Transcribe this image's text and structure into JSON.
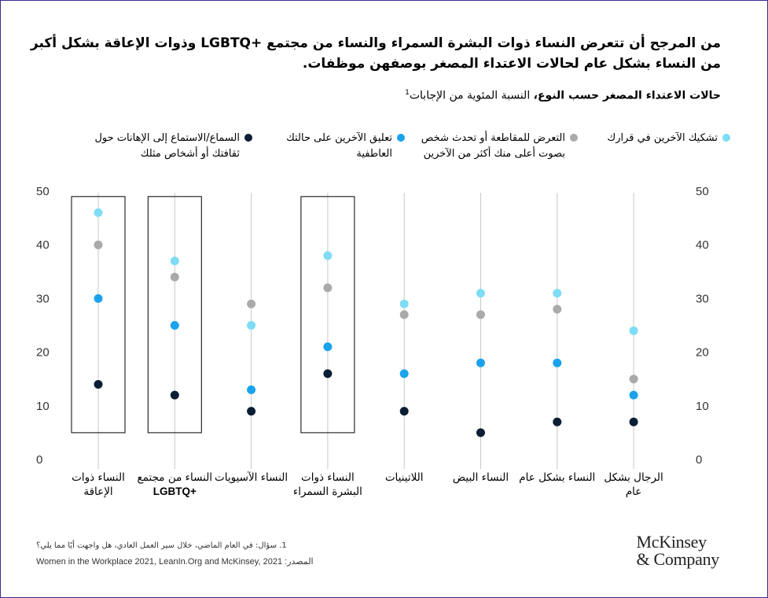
{
  "title": "من المرجح أن تتعرض النساء ذوات البشرة السمراء والنساء من مجتمع +LGBTQ وذوات الإعاقة بشكل أكبر من النساء بشكل عام لحالات الاعتداء المصغر بوصفهن موظفات.",
  "subtitle_bold": "حالات الاعتداء المصغر حسب النوع،",
  "subtitle_rest": " النسبة المئوية من الإجابات",
  "subtitle_sup": "1",
  "colors": {
    "light_blue": "#7fdcf6",
    "gray": "#aaaaaa",
    "blue": "#1aa3ec",
    "navy": "#0b1e33",
    "frame": "#3d2a8c"
  },
  "legend": [
    {
      "label": "تشكيك الآخرين في قرارك",
      "color": "#7fdcf6"
    },
    {
      "label": "التعرض للمقاطعة أو تحدث شخص بصوت أعلى منك أكثر من الآخرين",
      "color": "#aaaaaa"
    },
    {
      "label": "تعليق الآخرين على حالتك العاطفية",
      "color": "#1aa3ec"
    },
    {
      "label": "السماع/الاستماع إلى الإهانات حول ثقافتك أو أشخاص مثلك",
      "color": "#0b1e33"
    }
  ],
  "chart_data": {
    "type": "scatter",
    "ylim": [
      0,
      50
    ],
    "yticks": [
      0,
      10,
      20,
      30,
      40,
      50
    ],
    "categories": [
      {
        "label": "النساء ذوات الإعاقة",
        "boxed": true
      },
      {
        "label": "النساء من مجتمع",
        "label_latin": "LGBTQ+",
        "boxed": true
      },
      {
        "label": "النساء الآسيويات",
        "boxed": false
      },
      {
        "label": "النساء ذوات البشرة السمراء",
        "boxed": true
      },
      {
        "label": "اللاتينيات",
        "boxed": false
      },
      {
        "label": "النساء البيض",
        "boxed": false
      },
      {
        "label": "النساء بشكل عام",
        "boxed": false
      },
      {
        "label": "الرجال بشكل عام",
        "boxed": false
      }
    ],
    "series": [
      {
        "name": "تشكيك الآخرين في قرارك",
        "color": "#7fdcf6",
        "values": [
          46,
          37,
          25,
          38,
          29,
          31,
          31,
          24
        ]
      },
      {
        "name": "التعرض للمقاطعة أو تحدث شخص بصوت أعلى منك أكثر من الآخرين",
        "color": "#aaaaaa",
        "values": [
          40,
          34,
          29,
          32,
          27,
          27,
          28,
          15
        ]
      },
      {
        "name": "تعليق الآخرين على حالتك العاطفية",
        "color": "#1aa3ec",
        "values": [
          30,
          25,
          13,
          21,
          16,
          18,
          18,
          12
        ]
      },
      {
        "name": "السماع/الاستماع إلى الإهانات حول ثقافتك أو أشخاص مثلك",
        "color": "#0b1e33",
        "values": [
          14,
          12,
          9,
          16,
          9,
          5,
          7,
          7
        ]
      }
    ],
    "box_range": [
      5,
      49
    ]
  },
  "footnote": "1. سؤال: في العام الماضي، خلال سير العمل العادي، هل واجهت أيًا مما يلي؟",
  "source_text": "Women in the Workplace 2021, LeanIn.Org and McKinsey, 2021",
  "source_label": ":المصدر",
  "logo_line1": "McKinsey",
  "logo_line2": "& Company"
}
